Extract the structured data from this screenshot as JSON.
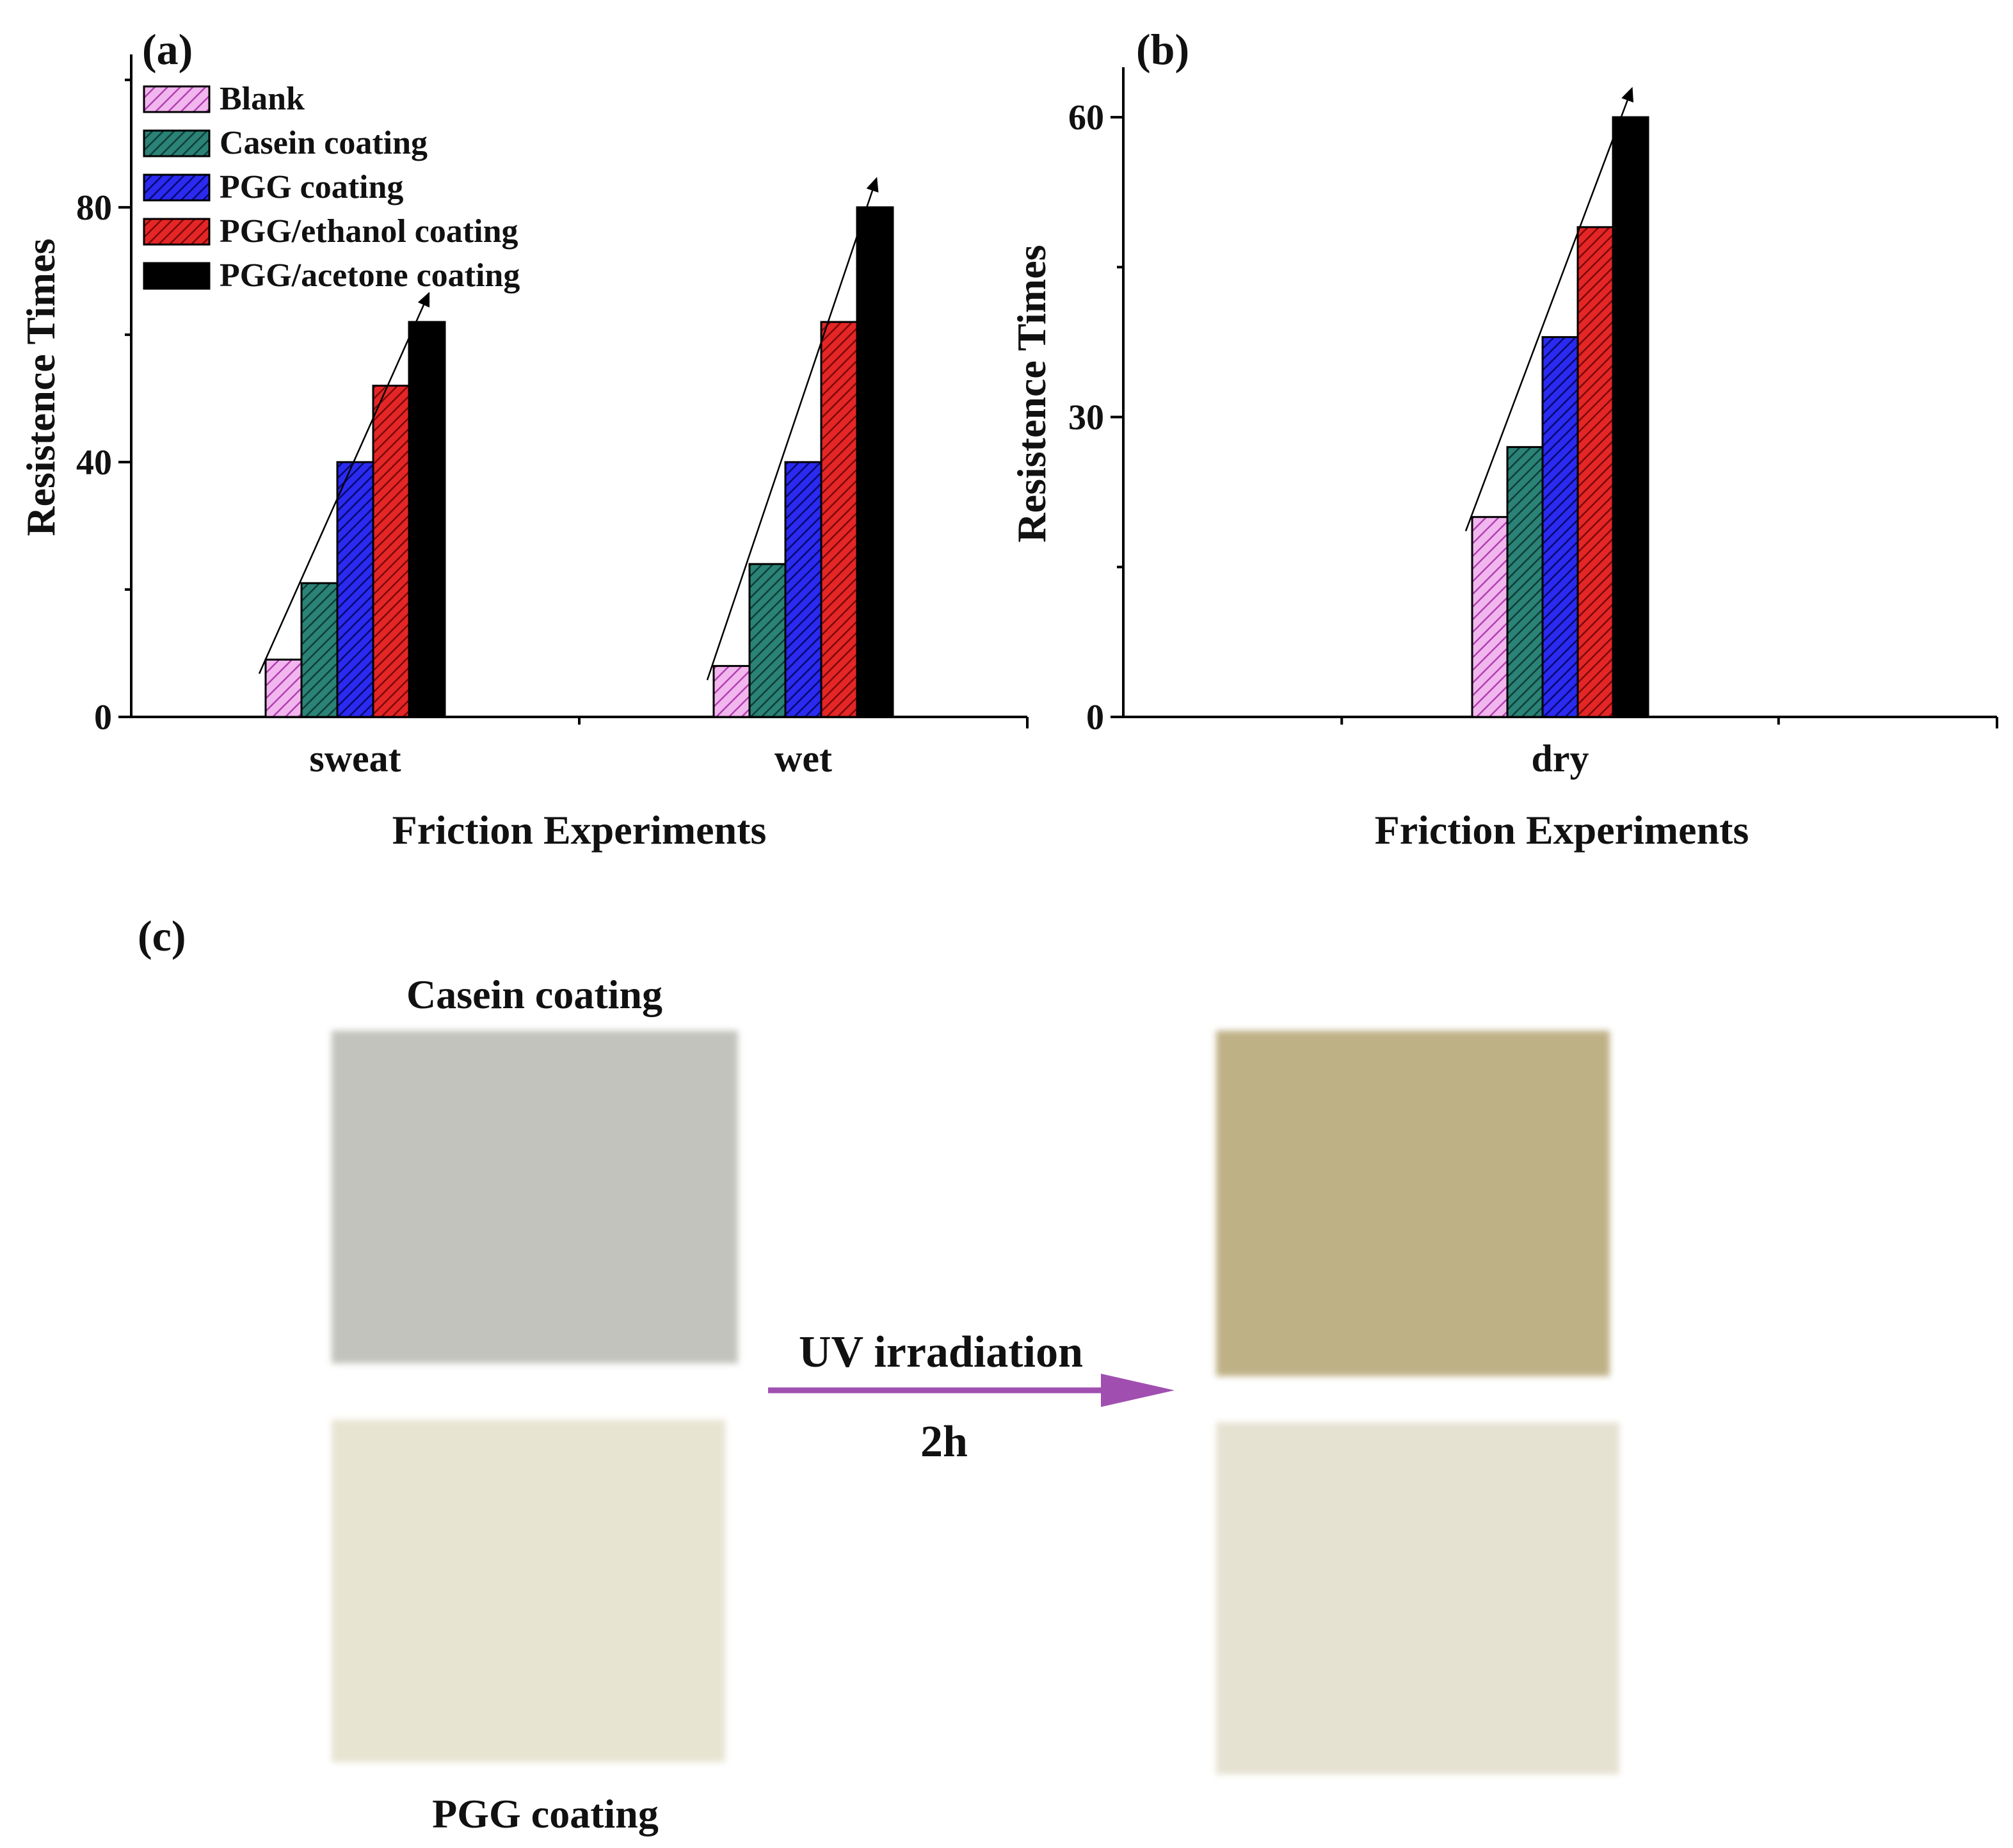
{
  "colors": {
    "Blank": "#e98ee6",
    "Casein coating": "#1f6e63",
    "PGG coating": "#1a1ad6",
    "PGG/ethanol coating": "#d41a1a",
    "PGG/acetone coating": "#000000",
    "uv_arrow": "#a04fb0",
    "casein_before": "#c2c3bd",
    "casein_after": "#bfb186",
    "pgg_before": "#e7e4d1",
    "pgg_after": "#e5e2d2"
  },
  "chart_data": [
    {
      "panel": "(a)",
      "type": "bar",
      "categories": [
        "sweat",
        "wet"
      ],
      "series": [
        {
          "name": "Blank",
          "values": [
            9,
            8
          ]
        },
        {
          "name": "Casein coating",
          "values": [
            21,
            24
          ]
        },
        {
          "name": "PGG coating",
          "values": [
            40,
            40
          ]
        },
        {
          "name": "PGG/ethanol coating",
          "values": [
            52,
            62
          ]
        },
        {
          "name": "PGG/acetone coating",
          "values": [
            62,
            80
          ]
        }
      ],
      "xlabel": "Friction Experiments",
      "ylabel": "Resistence Times",
      "ylim": [
        0,
        104
      ],
      "yticks": [
        0,
        40,
        80
      ],
      "legend": "top-left",
      "trend_arrows": true,
      "grid": false
    },
    {
      "panel": "(b)",
      "type": "bar",
      "categories": [
        "dry"
      ],
      "series": [
        {
          "name": "Blank",
          "values": [
            20
          ]
        },
        {
          "name": "Casein coating",
          "values": [
            27
          ]
        },
        {
          "name": "PGG coating",
          "values": [
            38
          ]
        },
        {
          "name": "PGG/ethanol coating",
          "values": [
            49
          ]
        },
        {
          "name": "PGG/acetone coating",
          "values": [
            60
          ]
        }
      ],
      "xlabel": "Friction Experiments",
      "ylabel": "Resistence Times",
      "ylim": [
        0,
        65
      ],
      "yticks": [
        0,
        30,
        60
      ],
      "legend": "none",
      "trend_arrows": true,
      "grid": false
    }
  ],
  "panel_c": {
    "letter": "(c)",
    "top_label": "Casein coating",
    "bottom_label": "PGG coating",
    "arrow_label": "UV irradiation",
    "arrow_sublabel": "2h"
  }
}
